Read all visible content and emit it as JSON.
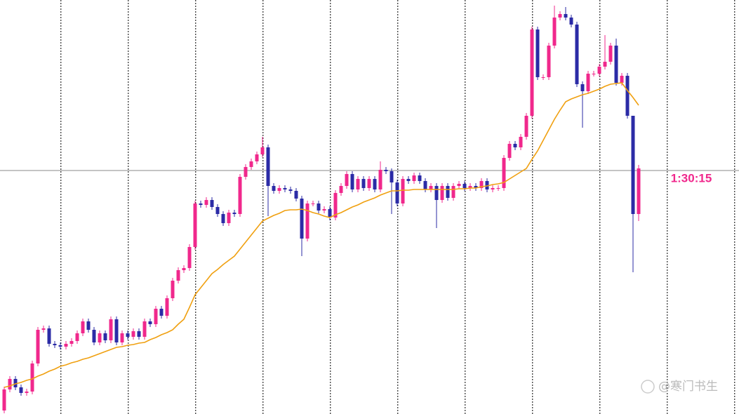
{
  "chart_data": {
    "type": "candlestick",
    "ylim": [
      0,
      590
    ],
    "grid": true,
    "up_color": "#f0288c",
    "down_color": "#2b2ba6",
    "open": [
      5,
      35,
      50,
      38,
      30,
      32,
      72,
      120,
      122,
      100,
      98,
      96,
      100,
      104,
      115,
      132,
      120,
      102,
      115,
      105,
      135,
      102,
      115,
      110,
      118,
      110,
      132,
      128,
      150,
      140,
      165,
      190,
      205,
      208,
      238,
      300,
      298,
      305,
      295,
      285,
      272,
      287,
      285,
      338,
      352,
      360,
      370,
      380,
      325,
      318,
      322,
      320,
      318,
      307,
      250,
      300,
      300,
      290,
      292,
      280,
      315,
      325,
      342,
      320,
      335,
      322,
      335,
      320,
      348,
      346,
      330,
      300,
      335,
      332,
      340,
      332,
      320,
      325,
      305,
      325,
      308,
      325,
      328,
      322,
      325,
      322,
      332,
      320,
      322,
      322,
      365,
      385,
      380,
      395,
      425,
      548,
      480,
      480,
      525,
      565,
      570,
      565,
      555,
      470,
      460,
      485,
      485,
      495,
      502,
      525,
      472,
      482,
      425,
      285
    ],
    "high": [
      39,
      54,
      54,
      42,
      36,
      76,
      124,
      126,
      126,
      104,
      102,
      104,
      108,
      119,
      136,
      136,
      124,
      119,
      119,
      139,
      139,
      119,
      119,
      122,
      122,
      136,
      136,
      154,
      154,
      169,
      194,
      209,
      212,
      242,
      304,
      304,
      309,
      309,
      299,
      289,
      291,
      291,
      342,
      356,
      364,
      374,
      395,
      384,
      329,
      326,
      326,
      324,
      322,
      311,
      304,
      304,
      304,
      296,
      296,
      319,
      329,
      346,
      346,
      339,
      339,
      339,
      339,
      360,
      352,
      350,
      334,
      339,
      339,
      344,
      344,
      336,
      329,
      329,
      329,
      329,
      329,
      332,
      332,
      329,
      329,
      336,
      336,
      326,
      326,
      369,
      389,
      389,
      399,
      429,
      552,
      552,
      484,
      529,
      582,
      574,
      580,
      569,
      559,
      474,
      489,
      489,
      499,
      540,
      529,
      535,
      486,
      486,
      425,
      355
    ],
    "low": [
      1,
      31,
      34,
      26,
      26,
      28,
      68,
      116,
      96,
      94,
      92,
      92,
      96,
      100,
      111,
      116,
      98,
      98,
      101,
      101,
      98,
      98,
      106,
      106,
      106,
      106,
      124,
      124,
      136,
      136,
      161,
      186,
      201,
      204,
      234,
      294,
      294,
      291,
      281,
      268,
      268,
      281,
      281,
      334,
      348,
      356,
      366,
      282,
      314,
      314,
      316,
      314,
      303,
      225,
      246,
      296,
      286,
      286,
      276,
      276,
      311,
      321,
      316,
      316,
      318,
      318,
      316,
      316,
      342,
      285,
      296,
      296,
      328,
      328,
      328,
      316,
      316,
      265,
      301,
      304,
      304,
      321,
      318,
      318,
      318,
      318,
      316,
      316,
      318,
      318,
      361,
      376,
      376,
      391,
      421,
      476,
      476,
      476,
      521,
      561,
      561,
      551,
      466,
      408,
      456,
      481,
      481,
      491,
      498,
      468,
      468,
      421,
      202,
      275
    ],
    "close": [
      35,
      50,
      38,
      30,
      32,
      72,
      120,
      122,
      100,
      98,
      96,
      100,
      104,
      115,
      132,
      120,
      102,
      115,
      105,
      135,
      102,
      115,
      110,
      118,
      110,
      132,
      128,
      150,
      140,
      165,
      190,
      205,
      208,
      238,
      300,
      298,
      305,
      295,
      285,
      272,
      287,
      285,
      338,
      352,
      360,
      370,
      380,
      325,
      318,
      322,
      320,
      318,
      307,
      250,
      300,
      300,
      290,
      292,
      280,
      315,
      325,
      342,
      320,
      335,
      322,
      335,
      320,
      348,
      346,
      330,
      300,
      335,
      332,
      340,
      332,
      320,
      325,
      305,
      325,
      308,
      325,
      328,
      322,
      325,
      322,
      332,
      320,
      322,
      322,
      365,
      385,
      380,
      395,
      425,
      548,
      480,
      480,
      525,
      565,
      570,
      565,
      555,
      470,
      460,
      485,
      485,
      495,
      502,
      525,
      472,
      482,
      425,
      285,
      350
    ],
    "ma": {
      "color": "#f0a010",
      "values": [
        38,
        40,
        43,
        45,
        48,
        50,
        54,
        57,
        61,
        64,
        68,
        70,
        73,
        75,
        78,
        80,
        83,
        86,
        89,
        92,
        95,
        96,
        98,
        99,
        101,
        102,
        106,
        109,
        113,
        116,
        120,
        128,
        135,
        152,
        170,
        180,
        190,
        200,
        206,
        213,
        219,
        225,
        235,
        245,
        255,
        265,
        275,
        279,
        283,
        286,
        290,
        291,
        291,
        292,
        290,
        287,
        285,
        282,
        280,
        284,
        287,
        291,
        295,
        298,
        302,
        305,
        308,
        312,
        315,
        318,
        318,
        319,
        319,
        320,
        320,
        320,
        320,
        320,
        320,
        320,
        320,
        321,
        321,
        322,
        322,
        324,
        325,
        327,
        328,
        330,
        335,
        340,
        345,
        350,
        363,
        375,
        390,
        405,
        420,
        433,
        445,
        449,
        452,
        455,
        457,
        460,
        463,
        467,
        470,
        471,
        472,
        461,
        451,
        440
      ]
    },
    "price_line": 347,
    "countdown_label": "1:30:15",
    "watermark": "@寒门书生"
  }
}
